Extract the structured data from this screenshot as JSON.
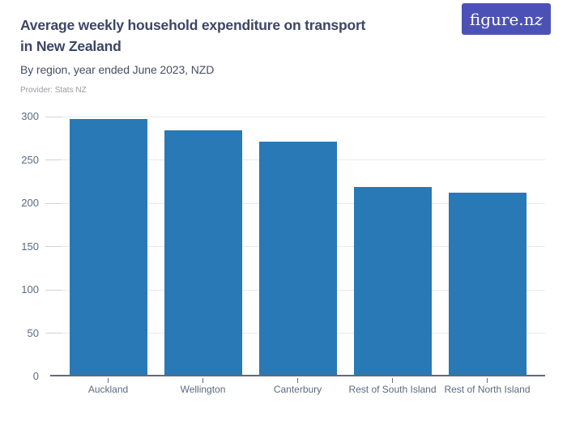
{
  "header": {
    "logo_text_main": "figure.n",
    "logo_text_swash": "z",
    "title_line1": "Average weekly household expenditure on transport",
    "title_line2": "in New Zealand",
    "subtitle": "By region, year ended June 2023, NZD",
    "provider": "Provider: Stats NZ"
  },
  "colors": {
    "bar": "#2879b5",
    "logo_bg": "#4c52b5",
    "title": "#3c4566",
    "axis_label": "#5a6b80",
    "axis_line": "#626a76",
    "gridline": "#e9e9eb"
  },
  "chart_data": {
    "type": "bar",
    "title": "Average weekly household expenditure on transport in New Zealand",
    "subtitle": "By region, year ended June 2023, NZD",
    "provider": "Stats NZ",
    "categories": [
      "Auckland",
      "Wellington",
      "Canterbury",
      "Rest of South Island",
      "Rest of North Island"
    ],
    "values": [
      295,
      282,
      269,
      217,
      210
    ],
    "unit": "NZD",
    "xlabel": "",
    "ylabel": "",
    "ylim": [
      0,
      300
    ],
    "y_ticks": [
      0,
      50,
      100,
      150,
      200,
      250,
      300
    ],
    "grid": "horizontal",
    "legend": false
  }
}
